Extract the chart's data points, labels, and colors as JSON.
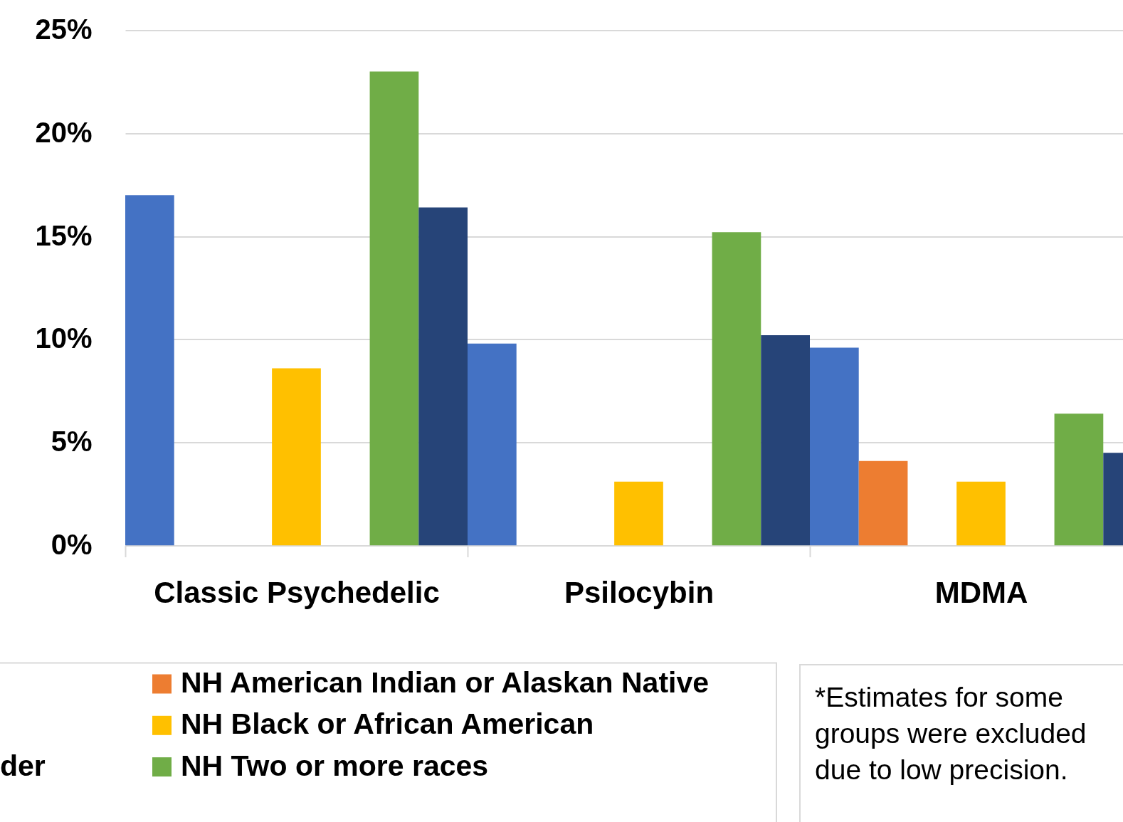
{
  "chart_data": {
    "type": "bar",
    "categories": [
      "Classic Psychedelic",
      "Psilocybin",
      "MDMA"
    ],
    "series": [
      {
        "color": "#4472c4",
        "values": [
          17.0,
          9.8,
          9.6
        ]
      },
      {
        "name": "NH American Indian or Alaskan Native",
        "color": "#ed7d31",
        "values": [
          null,
          null,
          4.1
        ]
      },
      {
        "values": [
          null,
          null,
          null
        ]
      },
      {
        "name": "NH Black or African American",
        "color": "#ffc000",
        "values": [
          8.6,
          3.1,
          3.1
        ]
      },
      {
        "name": "der",
        "values": [
          null,
          null,
          null
        ]
      },
      {
        "name": "NH Two or more races",
        "color": "#70ad47",
        "values": [
          23.0,
          15.2,
          6.4
        ]
      },
      {
        "color": "#264478",
        "values": [
          16.4,
          10.2,
          4.5
        ]
      }
    ],
    "ylim": [
      0,
      25
    ],
    "yticks": [
      {
        "value": 0,
        "label": "0%"
      },
      {
        "value": 5,
        "label": "5%"
      },
      {
        "value": 10,
        "label": "10%"
      },
      {
        "value": 15,
        "label": "15%"
      },
      {
        "value": 20,
        "label": "20%"
      },
      {
        "value": 25,
        "label": "25%"
      }
    ],
    "grid": "y",
    "legend": "bottom",
    "annotations": [
      "*Estimates for some groups were excluded due to low precision."
    ]
  }
}
